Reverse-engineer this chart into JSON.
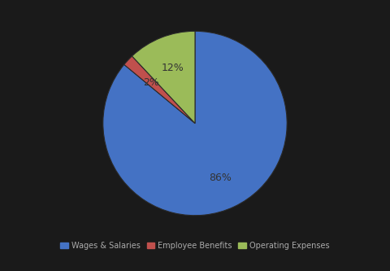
{
  "labels": [
    "Wages & Salaries",
    "Employee Benefits",
    "Operating Expenses"
  ],
  "values": [
    86,
    2,
    12
  ],
  "colors": [
    "#4472C4",
    "#C0504D",
    "#9BBB59"
  ],
  "background_color": "#1a1a1a",
  "text_color": "#333333",
  "pct_color": "#333333",
  "legend_fontsize": 7,
  "figsize": [
    4.8,
    3.33
  ],
  "dpi": 100,
  "startangle": 90,
  "pctdistance": 0.65
}
